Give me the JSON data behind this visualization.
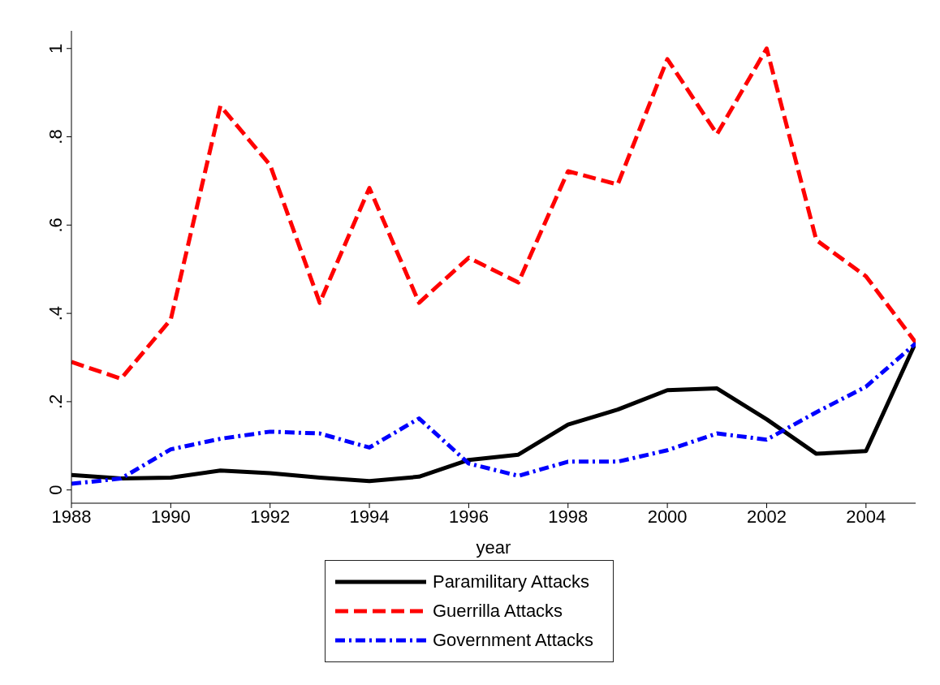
{
  "chart_data": {
    "type": "line",
    "xlabel": "year",
    "x": [
      1988,
      1989,
      1990,
      1991,
      1992,
      1993,
      1994,
      1995,
      1996,
      1997,
      1998,
      1999,
      2000,
      2001,
      2002,
      2003,
      2004,
      2005
    ],
    "series": [
      {
        "name": "Paramilitary Attacks",
        "color": "#000000",
        "line_style": "solid",
        "values": [
          0.034,
          0.026,
          0.028,
          0.044,
          0.038,
          0.028,
          0.02,
          0.03,
          0.068,
          0.08,
          0.148,
          0.182,
          0.226,
          0.23,
          0.16,
          0.082,
          0.088,
          0.334
        ]
      },
      {
        "name": "Guerrilla  Attacks",
        "color": "#ff0000",
        "line_style": "dashed",
        "values": [
          0.29,
          0.252,
          0.386,
          0.87,
          0.736,
          0.424,
          0.684,
          0.424,
          0.526,
          0.47,
          0.722,
          0.692,
          0.976,
          0.806,
          1.0,
          0.566,
          0.484,
          0.334
        ]
      },
      {
        "name": "Government  Attacks",
        "color": "#0000ff",
        "line_style": "dashdot",
        "values": [
          0.014,
          0.026,
          0.092,
          0.116,
          0.132,
          0.128,
          0.096,
          0.162,
          0.06,
          0.032,
          0.064,
          0.064,
          0.09,
          0.128,
          0.114,
          0.176,
          0.234,
          0.332
        ]
      }
    ],
    "xlim": [
      1988,
      2005
    ],
    "xticks": [
      1988,
      1990,
      1992,
      1994,
      1996,
      1998,
      2000,
      2002,
      2004
    ],
    "ylim": [
      -0.03,
      1.04
    ],
    "yticks": [
      0,
      {
        "value": 0.2,
        "label": ".2"
      },
      {
        "value": 0.4,
        "label": ".4"
      },
      {
        "value": 0.6,
        "label": ".6"
      },
      {
        "value": 0.8,
        "label": ".8"
      },
      1
    ],
    "grid": false,
    "legend": "bottom",
    "marker": "none"
  }
}
